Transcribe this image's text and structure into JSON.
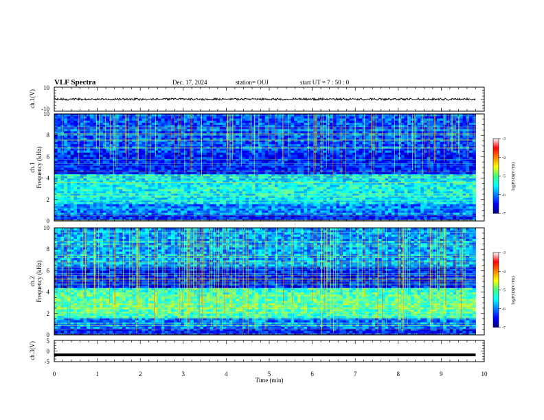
{
  "header": {
    "title": "VLF Spectra",
    "date": "Dec. 17, 2024",
    "station": "station= OUJ",
    "start": "start  UT =   7 : 50 : 0"
  },
  "chart_data": [
    {
      "type": "line",
      "panel": "ch1-waveform",
      "ylabel": "ch.1(V)",
      "ylim": [
        -10,
        10
      ],
      "yticks": [
        "10",
        "-10"
      ],
      "xlim": [
        0,
        10
      ],
      "x": [
        0,
        9.8
      ],
      "series": [
        {
          "values": [
            0.0,
            0.0
          ]
        }
      ],
      "line_color": "#000000"
    },
    {
      "type": "heatmap",
      "panel": "ch1-spectrogram",
      "ylabel": "ch.1",
      "ylabel2": "Frequency (kHz)",
      "ylim": [
        0,
        10
      ],
      "yticks": [
        "0",
        "2",
        "4",
        "6",
        "8",
        "10"
      ],
      "xlim": [
        0,
        10
      ],
      "data_extent_min": 9.8,
      "colorbar": {
        "range": [
          -7,
          -3
        ],
        "ticks": [
          "-3",
          "-4",
          "-5",
          "-6",
          "-7"
        ],
        "label": "log(PSD)(V²/Hz)"
      }
    },
    {
      "type": "heatmap",
      "panel": "ch2-spectrogram",
      "ylabel": "ch.2",
      "ylabel2": "Frequency (kHz)",
      "ylim": [
        0,
        10
      ],
      "yticks": [
        "0",
        "2",
        "4",
        "6",
        "8",
        "10"
      ],
      "xlim": [
        0,
        10
      ],
      "data_extent_min": 9.8,
      "colorbar": {
        "range": [
          -7,
          -3
        ],
        "ticks": [
          "-3",
          "-4",
          "-5",
          "-6",
          "-7"
        ],
        "label": "log(PSD)(V²/Hz)"
      }
    },
    {
      "type": "line",
      "panel": "ch3-waveform",
      "ylabel": "ch.3(V)",
      "ylim": [
        -5,
        5
      ],
      "yticks": [
        "5",
        "0",
        "-5"
      ],
      "xlim": [
        0,
        10
      ],
      "x": [
        0,
        9.8
      ],
      "series": [
        {
          "values": [
            -1.8,
            -1.8
          ]
        }
      ],
      "line_color": "#000000"
    }
  ],
  "xaxis": {
    "label": "Time (min)",
    "ticks": [
      "0",
      "1",
      "2",
      "3",
      "4",
      "5",
      "6",
      "7",
      "8",
      "9",
      "10"
    ]
  }
}
